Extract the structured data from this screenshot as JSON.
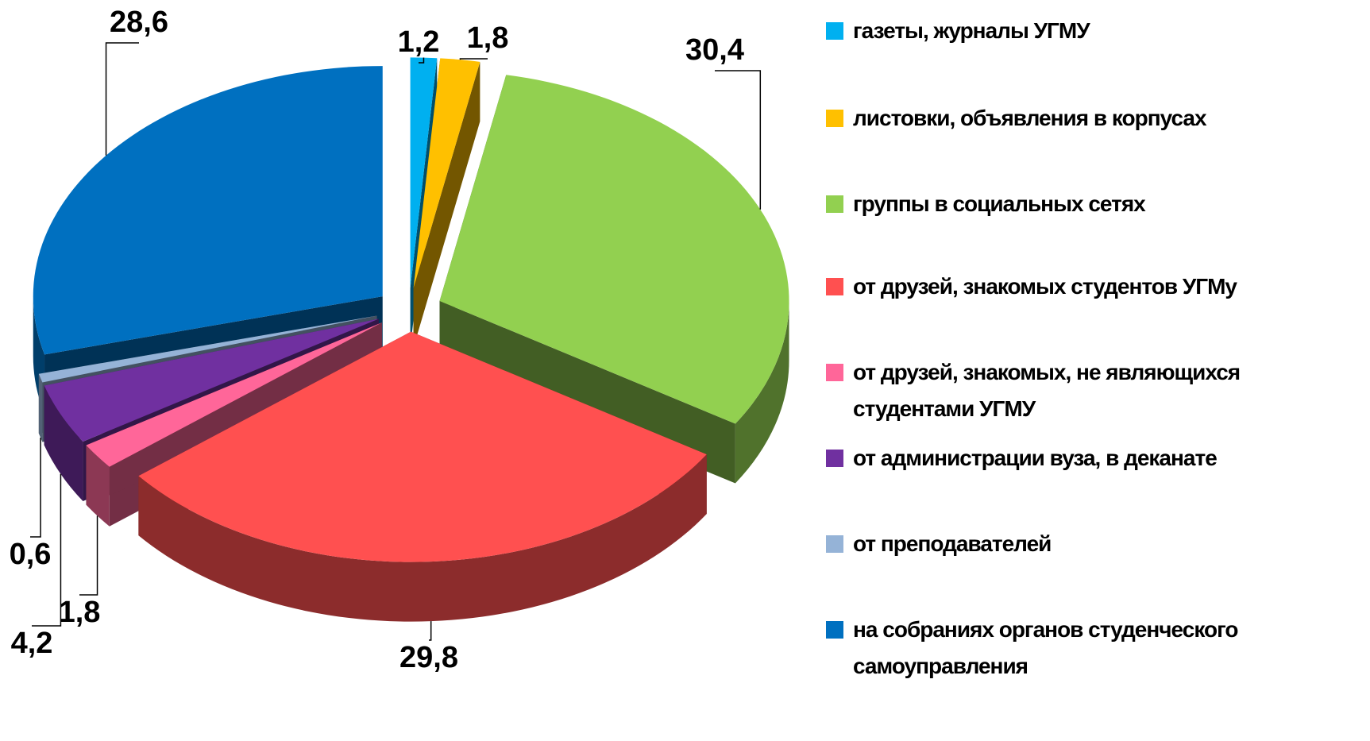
{
  "chart_data": {
    "type": "pie3d",
    "categories": [
      "газеты, журналы УГМУ",
      "листовки, объявления в корпусах",
      "группы в социальных сетях",
      "от друзей, знакомых студентов УГМу",
      "от друзей, знакомых, не являющихся студентами УГМУ",
      "от администрации вуза, в деканате",
      "от преподавателей",
      "на собраниях органов студенческого самоуправления"
    ],
    "values": [
      1.2,
      1.8,
      30.4,
      29.8,
      1.8,
      4.2,
      0.6,
      28.6
    ],
    "value_labels": [
      "1,2",
      "1,8",
      "30,4",
      "29,8",
      "1,8",
      "4,2",
      "0,6",
      "28,6"
    ],
    "colors": [
      "#00b0f0",
      "#ffc000",
      "#92d050",
      "#ff5050",
      "#ff6699",
      "#7030a0",
      "#95b3d7",
      "#0070c0"
    ],
    "legend": "right"
  }
}
